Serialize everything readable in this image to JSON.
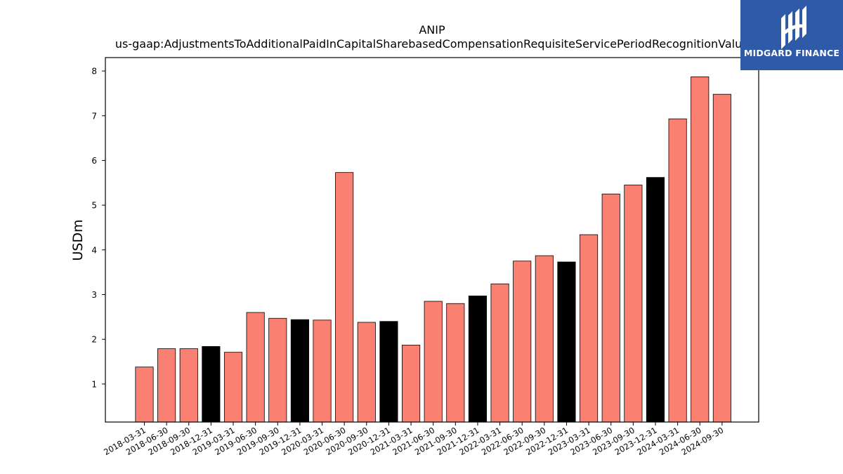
{
  "chart_data": {
    "type": "bar",
    "title": "ANIP",
    "subtitle": "us-gaap:AdjustmentsToAdditionalPaidInCapitalSharebasedCompensationRequisiteServicePeriodRecognitionValue",
    "xlabel": "",
    "ylabel": "USDm",
    "ylim": [
      0.15,
      8.3
    ],
    "yticks": [
      1,
      2,
      3,
      4,
      5,
      6,
      7,
      8
    ],
    "grid": false,
    "categories": [
      "2018-03-31",
      "2018-06-30",
      "2018-09-30",
      "2018-12-31",
      "2019-03-31",
      "2019-06-30",
      "2019-09-30",
      "2019-12-31",
      "2020-03-31",
      "2020-06-30",
      "2020-09-30",
      "2020-12-31",
      "2021-03-31",
      "2021-06-30",
      "2021-09-30",
      "2021-12-31",
      "2022-03-31",
      "2022-06-30",
      "2022-09-30",
      "2022-12-31",
      "2023-03-31",
      "2023-06-30",
      "2023-09-30",
      "2023-12-31",
      "2024-03-31",
      "2024-06-30",
      "2024-09-30"
    ],
    "values": [
      1.38,
      1.79,
      1.79,
      1.84,
      1.71,
      2.6,
      2.47,
      2.44,
      2.43,
      5.73,
      2.38,
      2.4,
      1.87,
      2.85,
      2.8,
      2.97,
      3.24,
      3.75,
      3.87,
      3.73,
      4.34,
      5.25,
      5.45,
      5.62,
      6.93,
      7.87,
      7.48
    ],
    "bar_colors": [
      "#fa8072",
      "#fa8072",
      "#fa8072",
      "#000000",
      "#fa8072",
      "#fa8072",
      "#fa8072",
      "#000000",
      "#fa8072",
      "#fa8072",
      "#fa8072",
      "#000000",
      "#fa8072",
      "#fa8072",
      "#fa8072",
      "#000000",
      "#fa8072",
      "#fa8072",
      "#fa8072",
      "#000000",
      "#fa8072",
      "#fa8072",
      "#fa8072",
      "#000000",
      "#fa8072",
      "#fa8072",
      "#fa8072"
    ]
  },
  "logo": {
    "text": "MIDGARD FINANCE",
    "background": "#2f5aa8"
  }
}
